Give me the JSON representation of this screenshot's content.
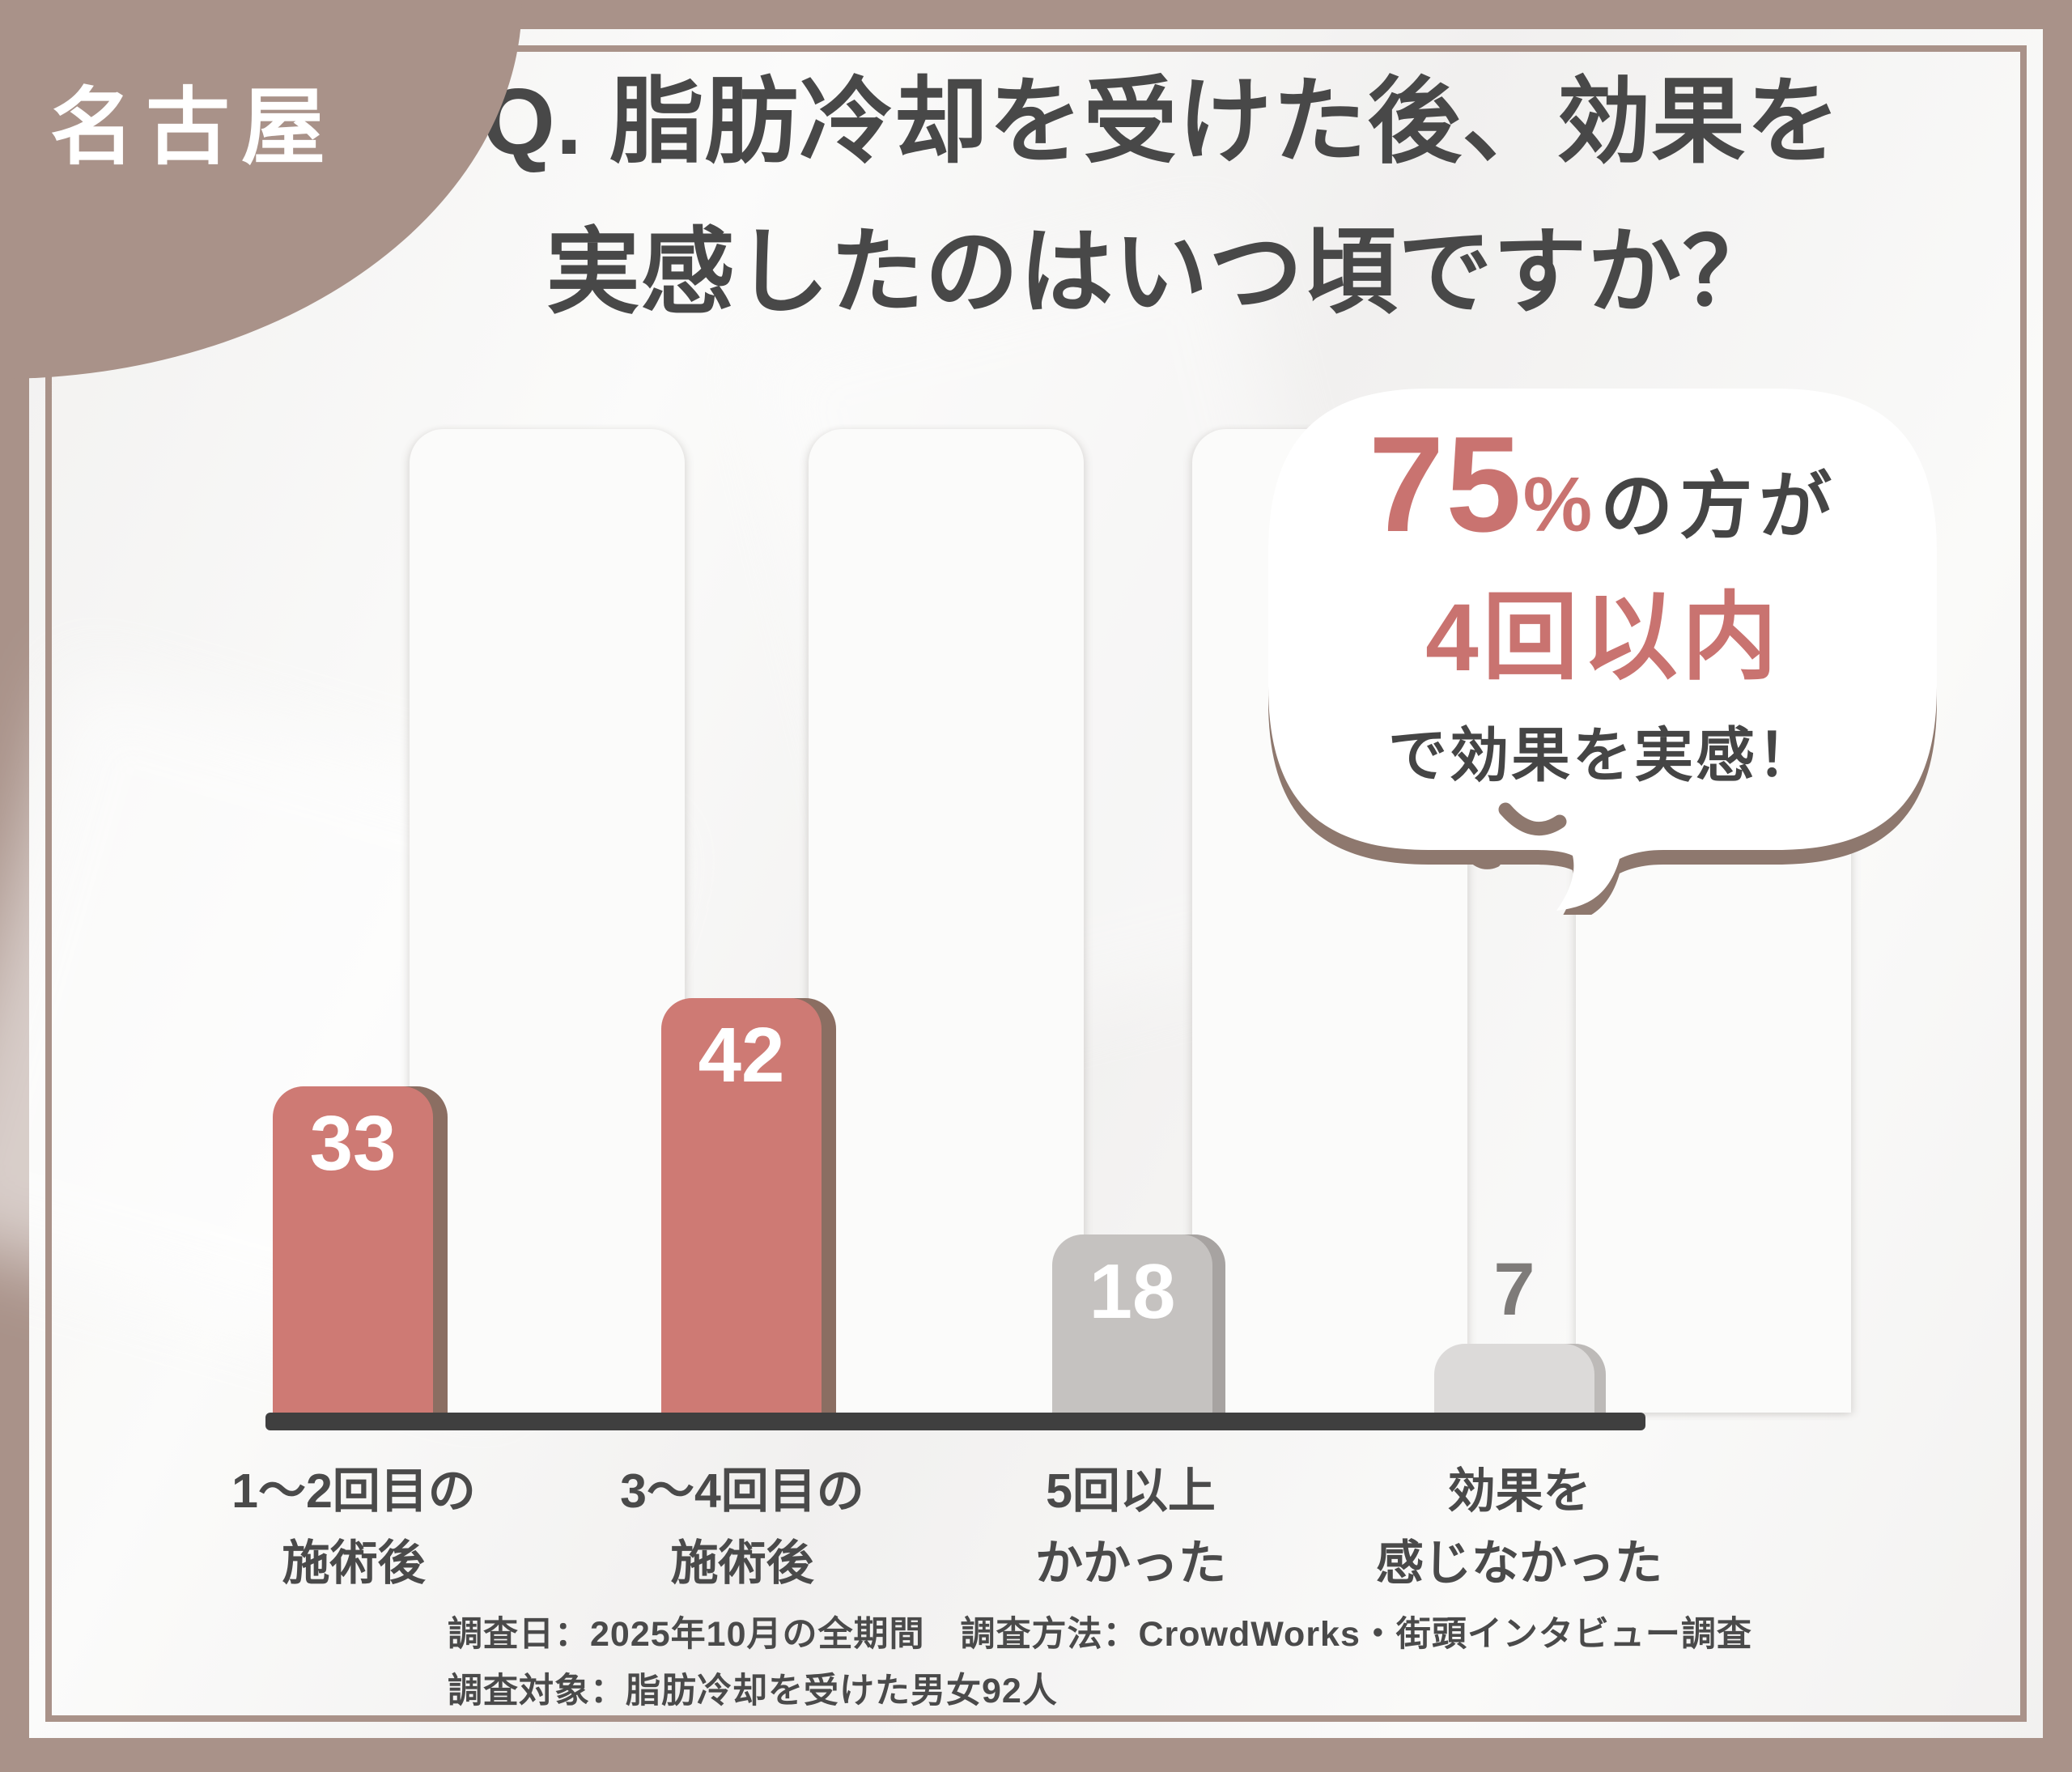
{
  "badge": {
    "label": "名古屋"
  },
  "title": {
    "line1": "Q. 脂肪冷却を受けた後、効果を",
    "line2": "実感したのはいつ頃ですか？"
  },
  "callout": {
    "stat": "75",
    "percent": "%",
    "who": "の方が",
    "highlight": "4回以内",
    "result": "で効果を実感！"
  },
  "chart_data": {
    "type": "bar",
    "title": "Q. 脂肪冷却を受けた後、効果を実感したのはいつ頃ですか？",
    "categories": [
      "1〜2回目の\n施術後",
      "3〜4回目の\n施術後",
      "5回以上\nかかった",
      "効果を\n感じなかった"
    ],
    "values": [
      33,
      42,
      18,
      7
    ],
    "value_labels": true,
    "highlighted_categories": [
      0,
      1
    ],
    "annotation": "75%の方が4回以内で効果を実感！",
    "axis": "no numeric axis; category labels and baseline only",
    "legend": "none"
  },
  "footer": {
    "line1": "調査日：2025年10月の全期間　調査方法：CrowdWorks・街頭インタビュー調査",
    "line2": "調査対象：脂肪冷却を受けた男女92人"
  },
  "colors": {
    "frame_mauve": "#A99289",
    "accent_pink_bar": "#CE7A74",
    "accent_pink_text": "#C97370",
    "bar_gray": "#C5C2C0",
    "bar_light_gray": "#DCDAD9",
    "bar_shadow_brown": "#8B6E62",
    "bubble_shadow_taupe": "#8E786E",
    "text_dark": "#484848",
    "baseline_dark": "#3F3F3F"
  }
}
